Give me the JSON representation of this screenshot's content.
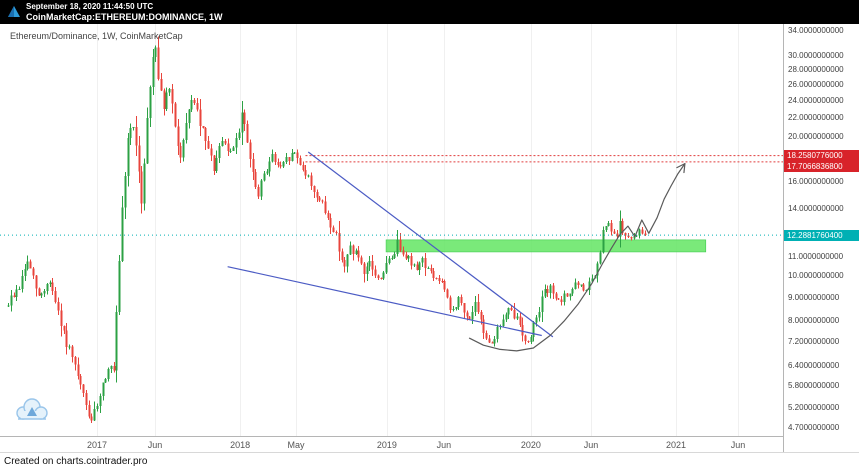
{
  "header": {
    "timestamp": "September 18, 2020 11:44:50 UTC",
    "symbol": "CoinMarketCap:ETHEREUM:DOMINANCE, 1W"
  },
  "legend": {
    "title": "Ethereum/Dominance, 1W, CoinMarketCap"
  },
  "footer": {
    "credit": "Created on charts.cointrader.pro"
  },
  "colors": {
    "up_candle": "#2ca144",
    "down_candle": "#e8453c",
    "badge_red": "#d8232a",
    "badge_teal": "#00b0b4",
    "line_red": "#e03c3c",
    "teal": "#00b0b4",
    "trendline_blue": "#4b5bc4",
    "zone_green": "#63e563",
    "zone_border": "#3ecb4e",
    "arrow_gray": "#5a5a5a",
    "axis_text": "#3f3f3f",
    "grid": "#f0f0f0"
  },
  "chart_data": {
    "type": "candlestick",
    "title": "Ethereum/Dominance, 1W, CoinMarketCap",
    "symbol": "ETHEREUM:DOMINANCE",
    "interval": "1W",
    "data_source": "CoinMarketCap",
    "y_scale": "logarithmic",
    "ylim": [
      4.5,
      35.2
    ],
    "x_range_note": "weekly bars from late 2016 to mid-September 2020, axis extends to mid 2021",
    "last_price": 12.28817604,
    "y_axis_values": [
      34,
      30,
      28,
      26,
      24,
      22,
      20,
      16,
      14,
      11,
      10,
      9,
      8,
      7.2,
      6.4,
      5.8,
      5.2,
      4.7
    ],
    "price_badges": [
      {
        "value": 18.2580776,
        "type": "resistance",
        "color": "red"
      },
      {
        "value": 17.70668368,
        "type": "resistance",
        "color": "red"
      },
      {
        "value": 12.28817604,
        "type": "last-price",
        "color": "teal"
      }
    ],
    "x_axis_labels": [
      {
        "label": "2017",
        "week": 32
      },
      {
        "label": "Jun",
        "week": 52.9
      },
      {
        "label": "2018",
        "week": 83.5
      },
      {
        "label": "May",
        "week": 103.6
      },
      {
        "label": "2019",
        "week": 136.3
      },
      {
        "label": "Jun",
        "week": 156.8
      },
      {
        "label": "2020",
        "week": 188.1
      },
      {
        "label": "Jun",
        "week": 209.7
      },
      {
        "label": "2021",
        "week": 240.3
      },
      {
        "label": "Jun",
        "week": 262.6
      }
    ],
    "candle_count": 230,
    "price_keyframes": [
      [
        0,
        8.6
      ],
      [
        5,
        9.5
      ],
      [
        8,
        10.8
      ],
      [
        12,
        9.0
      ],
      [
        16,
        9.8
      ],
      [
        20,
        7.8
      ],
      [
        24,
        6.6
      ],
      [
        28,
        5.5
      ],
      [
        31,
        4.8
      ],
      [
        34,
        5.6
      ],
      [
        37,
        6.4
      ],
      [
        39,
        6.2
      ],
      [
        40,
        8.2
      ],
      [
        42,
        13.8
      ],
      [
        44,
        20
      ],
      [
        46,
        21.5
      ],
      [
        49,
        14.5
      ],
      [
        51,
        22
      ],
      [
        53,
        30
      ],
      [
        54,
        31.8
      ],
      [
        55,
        27
      ],
      [
        57,
        23.5
      ],
      [
        59,
        25.5
      ],
      [
        61,
        21
      ],
      [
        63,
        18
      ],
      [
        65,
        21
      ],
      [
        67,
        24.5
      ],
      [
        69,
        22.5
      ],
      [
        72,
        19.5
      ],
      [
        75,
        17.2
      ],
      [
        78,
        19.5
      ],
      [
        81,
        18.5
      ],
      [
        84,
        21
      ],
      [
        85,
        22.5
      ],
      [
        87,
        19.5
      ],
      [
        89,
        16.5
      ],
      [
        91,
        14.8
      ],
      [
        93,
        16.8
      ],
      [
        96,
        18.2
      ],
      [
        99,
        17.0
      ],
      [
        101,
        17.8
      ],
      [
        104,
        18.5
      ],
      [
        107,
        17.2
      ],
      [
        110,
        15.8
      ],
      [
        113,
        14.6
      ],
      [
        116,
        13.4
      ],
      [
        119,
        12.2
      ],
      [
        122,
        10.4
      ],
      [
        124,
        11.6
      ],
      [
        127,
        11.0
      ],
      [
        129,
        9.9
      ],
      [
        131,
        10.7
      ],
      [
        134,
        9.8
      ],
      [
        136,
        10.3
      ],
      [
        139,
        11.0
      ],
      [
        141,
        11.8
      ],
      [
        144,
        11.2
      ],
      [
        147,
        10.4
      ],
      [
        150,
        10.9
      ],
      [
        153,
        10.1
      ],
      [
        157,
        9.7
      ],
      [
        160,
        8.4
      ],
      [
        163,
        8.9
      ],
      [
        166,
        8.1
      ],
      [
        169,
        8.6
      ],
      [
        172,
        7.6
      ],
      [
        175,
        7.2
      ],
      [
        178,
        7.9
      ],
      [
        181,
        8.4
      ],
      [
        184,
        8.1
      ],
      [
        186,
        7.6
      ],
      [
        188,
        7.1
      ],
      [
        191,
        8.3
      ],
      [
        194,
        9.2
      ],
      [
        197,
        9.4
      ],
      [
        199,
        8.7
      ],
      [
        202,
        9.1
      ],
      [
        205,
        9.6
      ],
      [
        208,
        9.3
      ],
      [
        211,
        9.8
      ],
      [
        213,
        10.4
      ],
      [
        215,
        12.4
      ],
      [
        217,
        13.0
      ],
      [
        219,
        12.1
      ],
      [
        221,
        12.9
      ],
      [
        223,
        12.2
      ],
      [
        225,
        11.9
      ],
      [
        227,
        12.5
      ],
      [
        230,
        12.28817604
      ]
    ],
    "drawings": {
      "support_zone": {
        "from_week": 136,
        "to_week": 251,
        "price_top": 12.0,
        "price_bottom": 11.3
      },
      "resistance_lines": [
        {
          "value": 18.2580776,
          "from_week": 107
        },
        {
          "value": 17.70668368,
          "from_week": 107
        }
      ],
      "current_price_line": {
        "value": 12.28817604
      },
      "trendlines": [
        {
          "from": [
            108,
            18.6
          ],
          "to": [
            196,
            7.4
          ]
        },
        {
          "from": [
            79,
            10.5
          ],
          "to": [
            192,
            7.45
          ]
        }
      ],
      "projection_curve": [
        [
          166,
          7.35
        ],
        [
          171,
          7.1
        ],
        [
          177,
          6.95
        ],
        [
          183,
          6.9
        ],
        [
          189,
          7.0
        ],
        [
          195,
          7.45
        ],
        [
          200,
          8.0
        ],
        [
          205,
          8.7
        ],
        [
          210,
          9.65
        ],
        [
          214,
          10.7
        ],
        [
          217,
          11.5
        ],
        [
          220,
          12.3
        ],
        [
          223,
          12.85
        ],
        [
          225.5,
          12.2
        ],
        [
          228,
          13.25
        ],
        [
          230.5,
          12.4
        ],
        [
          233.5,
          13.4
        ],
        [
          236,
          14.7
        ],
        [
          238.5,
          15.7
        ],
        [
          241,
          16.7
        ],
        [
          243.5,
          17.55
        ]
      ]
    }
  }
}
